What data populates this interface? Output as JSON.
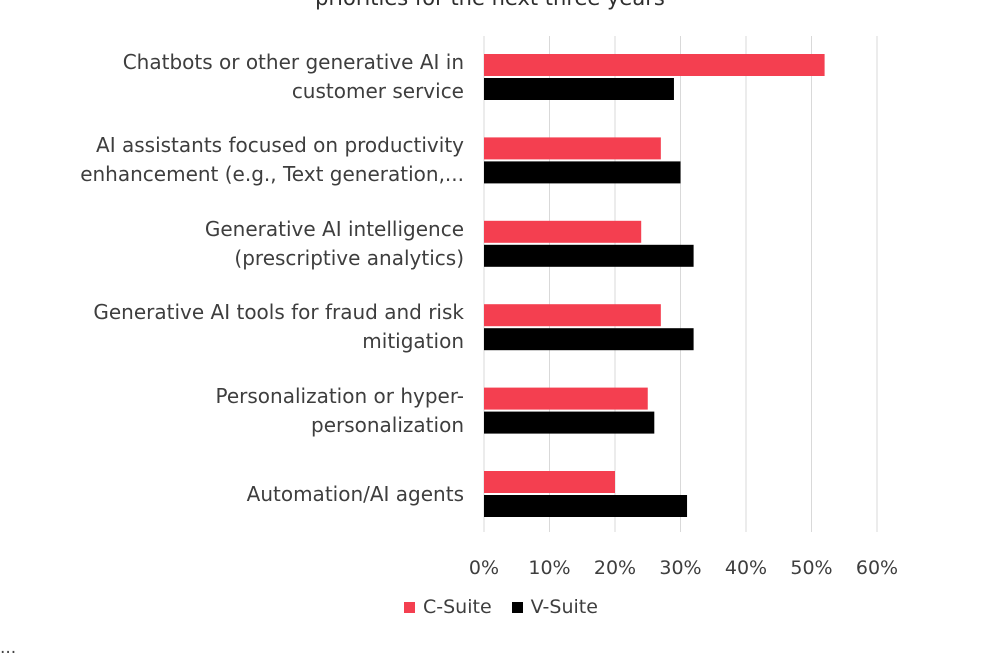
{
  "chart_data": {
    "type": "bar",
    "orientation": "horizontal",
    "title": "priorities for the next three years",
    "categories": [
      [
        "Chatbots or other generative AI in",
        "customer service"
      ],
      [
        "AI assistants focused on productivity",
        "enhancement (e.g., Text generation,..."
      ],
      [
        "Generative AI intelligence",
        "(prescriptive analytics)"
      ],
      [
        "Generative AI tools for fraud and risk",
        "mitigation"
      ],
      [
        "Personalization or hyper-",
        "personalization"
      ],
      [
        "Automation/AI agents"
      ]
    ],
    "series": [
      {
        "name": "C-Suite",
        "color": "#f43f50",
        "values": [
          52,
          27,
          24,
          27,
          25,
          20
        ]
      },
      {
        "name": "V-Suite",
        "color": "#000000",
        "values": [
          29,
          30,
          32,
          32,
          26,
          31
        ]
      }
    ],
    "xlim": [
      0,
      60
    ],
    "xticks": [
      "0%",
      "10%",
      "20%",
      "30%",
      "40%",
      "50%",
      "60%"
    ],
    "grid": true,
    "legend_position": "bottom",
    "source_note": "... "
  }
}
